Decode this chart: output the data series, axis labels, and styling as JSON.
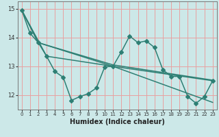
{
  "xlabel": "Humidex (Indice chaleur)",
  "xlim": [
    -0.5,
    23.5
  ],
  "ylim": [
    11.5,
    15.25
  ],
  "yticks": [
    12,
    13,
    14,
    15
  ],
  "xticks": [
    0,
    1,
    2,
    3,
    4,
    5,
    6,
    7,
    8,
    9,
    10,
    11,
    12,
    13,
    14,
    15,
    16,
    17,
    18,
    19,
    20,
    21,
    22,
    23
  ],
  "bg_color": "#cce8e8",
  "grid_color": "#e8a0a0",
  "line_color": "#2e7f74",
  "line1_x": [
    0,
    1,
    2,
    3,
    4,
    5,
    6,
    7,
    8,
    9,
    10,
    11,
    12,
    13,
    14,
    15,
    16,
    17,
    18,
    19,
    20,
    21,
    22,
    23
  ],
  "line1_y": [
    14.95,
    14.15,
    13.82,
    13.35,
    12.82,
    12.62,
    11.82,
    11.95,
    12.05,
    12.25,
    12.98,
    13.0,
    13.5,
    14.05,
    13.82,
    13.88,
    13.65,
    12.88,
    12.65,
    12.65,
    11.95,
    11.72,
    11.95,
    12.5
  ],
  "line2_x": [
    0,
    2,
    11,
    23
  ],
  "line2_y": [
    14.95,
    13.82,
    13.0,
    12.5
  ],
  "line3_x": [
    0,
    2,
    11,
    23
  ],
  "line3_y": [
    14.95,
    13.82,
    13.05,
    12.52
  ],
  "line4_x": [
    0,
    3,
    11,
    23
  ],
  "line4_y": [
    14.95,
    13.35,
    13.0,
    11.75
  ],
  "marker": "D",
  "markersize": 3.0,
  "linewidth": 1.1
}
